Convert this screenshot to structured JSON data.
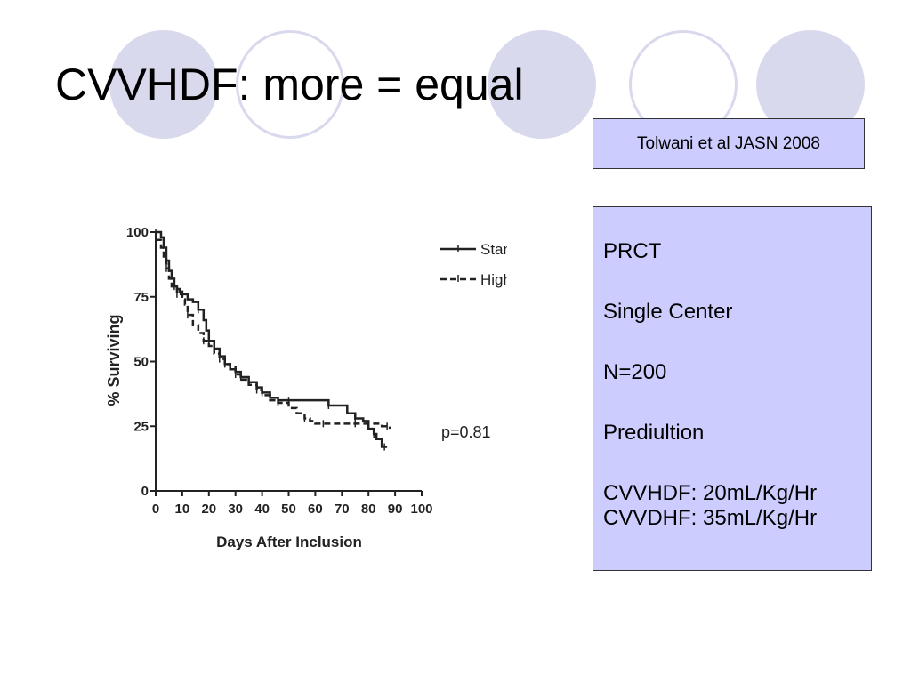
{
  "slide": {
    "title": "CVVHDF: more = equal",
    "citation": "Tolwani et al JASN 2008",
    "info": {
      "design": "PRCT",
      "center": "Single Center",
      "n": "N=200",
      "mode": "Prediultion",
      "dose_low": "CVVHDF: 20mL/Kg/Hr",
      "dose_high": "CVVDHF: 35mL/Kg/Hr"
    },
    "colors": {
      "decor": "#d9d9ee",
      "box": "#ccccff"
    }
  },
  "chart_data": {
    "type": "line",
    "ylabel": "% Surviving",
    "xlabel": "Days After Inclusion",
    "xlim": [
      0,
      100
    ],
    "ylim": [
      0,
      100
    ],
    "xticks": [
      "0",
      "10",
      "20",
      "30",
      "40",
      "50",
      "60",
      "70",
      "80",
      "90",
      "100"
    ],
    "yticks": [
      "0",
      "25",
      "50",
      "75",
      "100"
    ],
    "annotation": "p=0.81",
    "legend_position": "top-right",
    "series": [
      {
        "name": "Standard Dose",
        "style": "solid",
        "points": [
          [
            0,
            100
          ],
          [
            2,
            98
          ],
          [
            3,
            94
          ],
          [
            4,
            89
          ],
          [
            5,
            85
          ],
          [
            6,
            82
          ],
          [
            7,
            79
          ],
          [
            8,
            78
          ],
          [
            9,
            77
          ],
          [
            10,
            76
          ],
          [
            12,
            74
          ],
          [
            14,
            73
          ],
          [
            16,
            70
          ],
          [
            18,
            66
          ],
          [
            19,
            62
          ],
          [
            20,
            58
          ],
          [
            22,
            55
          ],
          [
            24,
            52
          ],
          [
            26,
            49
          ],
          [
            28,
            47
          ],
          [
            30,
            46
          ],
          [
            32,
            44
          ],
          [
            35,
            42
          ],
          [
            38,
            40
          ],
          [
            40,
            38
          ],
          [
            43,
            36
          ],
          [
            46,
            35
          ],
          [
            50,
            35
          ],
          [
            55,
            35
          ],
          [
            60,
            35
          ],
          [
            65,
            33
          ],
          [
            70,
            33
          ],
          [
            72,
            30
          ],
          [
            75,
            28
          ],
          [
            78,
            27
          ],
          [
            80,
            24
          ],
          [
            82,
            22
          ],
          [
            83,
            20
          ],
          [
            85,
            17
          ],
          [
            86,
            17
          ],
          [
            87,
            17
          ]
        ]
      },
      {
        "name": "High Dose",
        "style": "dashed",
        "points": [
          [
            0,
            97
          ],
          [
            2,
            94
          ],
          [
            3,
            90
          ],
          [
            4,
            86
          ],
          [
            5,
            82
          ],
          [
            6,
            79
          ],
          [
            8,
            76
          ],
          [
            10,
            74
          ],
          [
            11,
            72
          ],
          [
            12,
            68
          ],
          [
            14,
            64
          ],
          [
            16,
            61
          ],
          [
            18,
            58
          ],
          [
            20,
            56
          ],
          [
            22,
            53
          ],
          [
            24,
            51
          ],
          [
            26,
            49
          ],
          [
            28,
            48
          ],
          [
            30,
            45
          ],
          [
            32,
            43
          ],
          [
            35,
            41
          ],
          [
            38,
            39
          ],
          [
            40,
            37
          ],
          [
            43,
            35
          ],
          [
            46,
            34
          ],
          [
            50,
            32
          ],
          [
            53,
            30
          ],
          [
            56,
            28
          ],
          [
            58,
            27
          ],
          [
            60,
            26
          ],
          [
            63,
            26
          ],
          [
            66,
            26
          ],
          [
            70,
            26
          ],
          [
            75,
            26
          ],
          [
            80,
            26
          ],
          [
            85,
            25
          ],
          [
            87,
            25
          ],
          [
            88,
            24
          ]
        ]
      }
    ]
  }
}
